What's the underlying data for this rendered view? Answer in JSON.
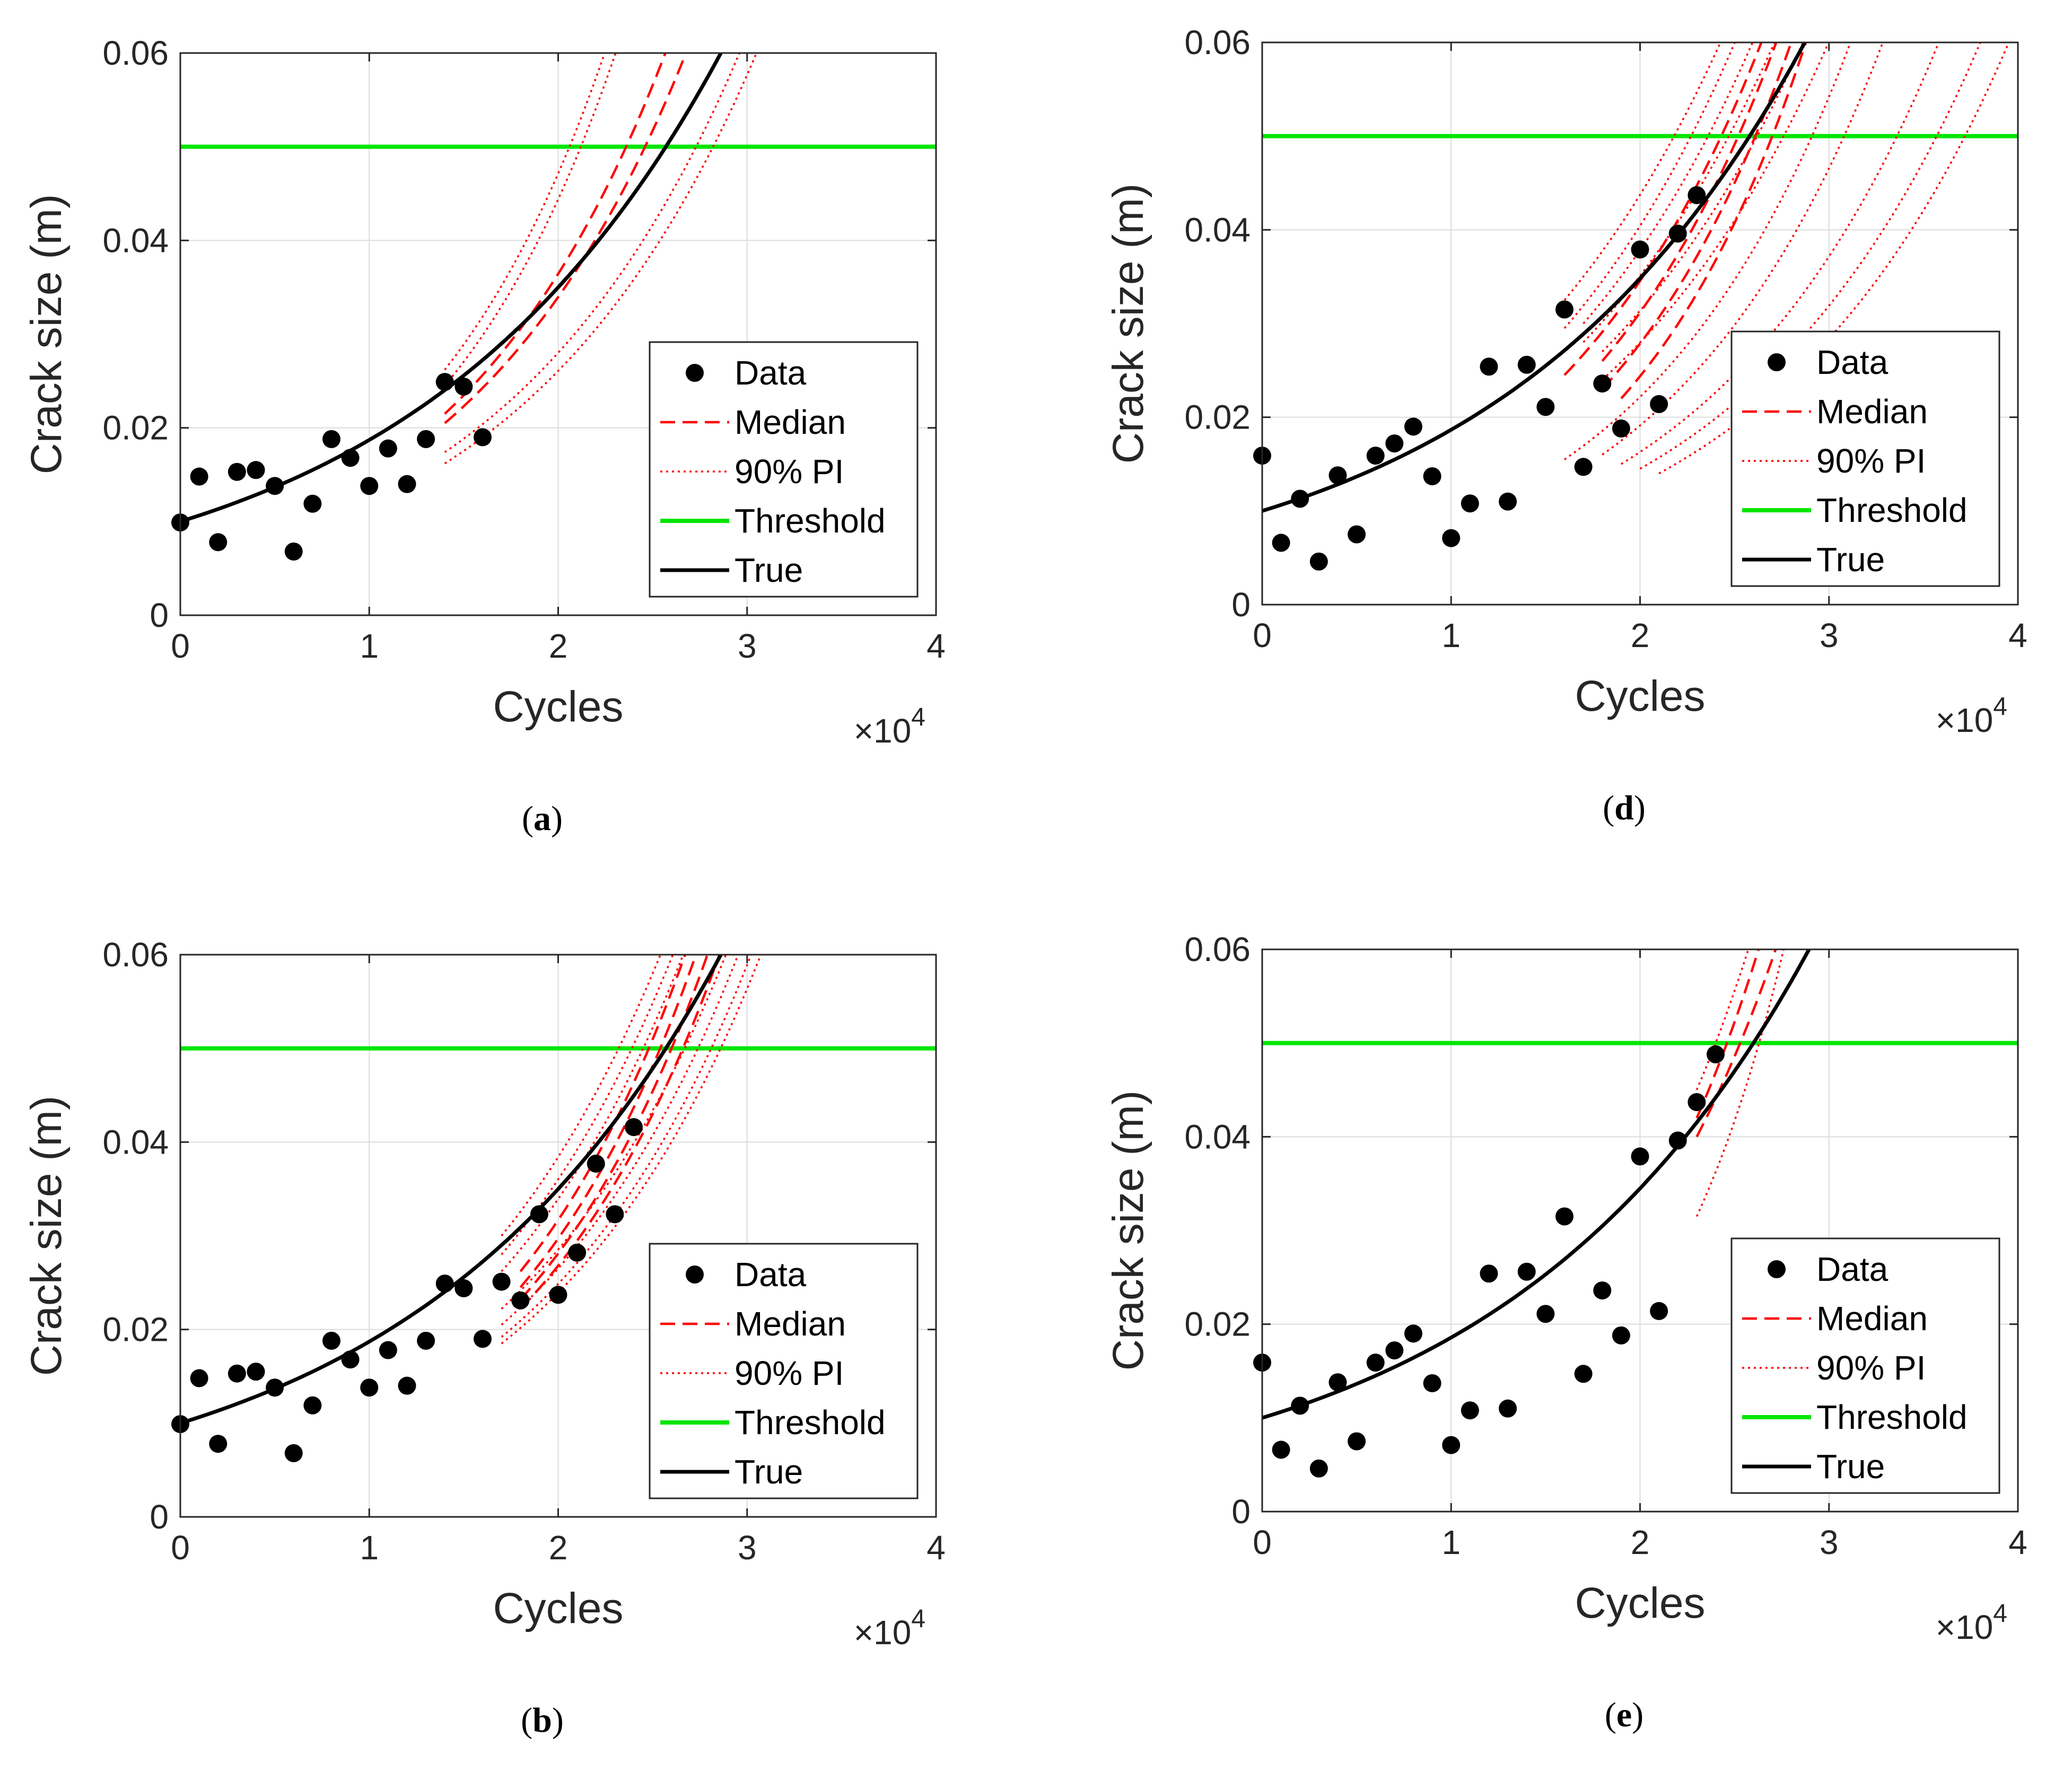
{
  "colors": {
    "data": "#000000",
    "median": "#ff0000",
    "pi": "#ff0000",
    "threshold": "#00e600",
    "true": "#000000",
    "grid": "#dcdcdc"
  },
  "chart_data": [
    {
      "id": "a",
      "type": "line",
      "caption": "a",
      "xlabel": "Cycles",
      "ylabel": "Crack size (m)",
      "x_multiplier": "×10",
      "x_multiplier_exp": "4",
      "xlim": [
        0,
        40000
      ],
      "ylim": [
        0,
        0.06
      ],
      "xticks": [
        0,
        10000,
        20000,
        30000,
        40000
      ],
      "xtick_labels": [
        "0",
        "1",
        "2",
        "3",
        "4"
      ],
      "yticks": [
        0,
        0.02,
        0.04,
        0.06
      ],
      "ytick_labels": [
        "0",
        "0.02",
        "0.04",
        "0.06"
      ],
      "legend": {
        "position": "middle-right",
        "entries": [
          "Data",
          "Median",
          "90% PI",
          "Threshold",
          "True"
        ]
      },
      "threshold": 0.05,
      "true_curve": {
        "a0": 0.01,
        "N_at_threshold": 25700
      },
      "data": {
        "x": [
          0,
          1000,
          2000,
          3000,
          4000,
          5000,
          6000,
          7000,
          8000,
          9000,
          10000,
          11000,
          12000,
          13000,
          14000,
          15000,
          16000
        ],
        "y": [
          0.0099,
          0.0148,
          0.0078,
          0.0153,
          0.0155,
          0.0138,
          0.0068,
          0.0119,
          0.0188,
          0.0168,
          0.0138,
          0.0178,
          0.014,
          0.0188,
          0.0249,
          0.0244,
          0.019
        ]
      },
      "median_curves": [
        {
          "start": [
            14000,
            0.0215
          ],
          "N_at_threshold": 23600
        },
        {
          "start": [
            14000,
            0.0205
          ],
          "N_at_threshold": 24600
        }
      ],
      "pi_curves": [
        {
          "start": [
            14000,
            0.0262
          ],
          "N_at_threshold": 20600
        },
        {
          "start": [
            14000,
            0.0245
          ],
          "N_at_threshold": 21200
        },
        {
          "start": [
            14000,
            0.0174
          ],
          "N_at_threshold": 27300
        },
        {
          "start": [
            14000,
            0.0162
          ],
          "N_at_threshold": 28200
        }
      ]
    },
    {
      "id": "b",
      "type": "line",
      "caption": "b",
      "xlabel": "Cycles",
      "ylabel": "Crack size (m)",
      "x_multiplier": "×10",
      "x_multiplier_exp": "4",
      "xlim": [
        0,
        40000
      ],
      "ylim": [
        0,
        0.06
      ],
      "xticks": [
        0,
        10000,
        20000,
        30000,
        40000
      ],
      "xtick_labels": [
        "0",
        "1",
        "2",
        "3",
        "4"
      ],
      "yticks": [
        0,
        0.02,
        0.04,
        0.06
      ],
      "ytick_labels": [
        "0",
        "0.02",
        "0.04",
        "0.06"
      ],
      "legend": {
        "position": "middle-right",
        "entries": [
          "Data",
          "Median",
          "90% PI",
          "Threshold",
          "True"
        ]
      },
      "threshold": 0.05,
      "true_curve": {
        "a0": 0.01,
        "N_at_threshold": 25700
      },
      "data": {
        "x": [
          0,
          1000,
          2000,
          3000,
          4000,
          5000,
          6000,
          7000,
          8000,
          9000,
          10000,
          11000,
          12000,
          13000,
          14000,
          15000,
          16000,
          17000,
          18000,
          19000,
          20000,
          21000,
          22000,
          23000,
          24000
        ],
        "y": [
          0.0099,
          0.0148,
          0.0078,
          0.0153,
          0.0155,
          0.0138,
          0.0068,
          0.0119,
          0.0188,
          0.0168,
          0.0138,
          0.0178,
          0.014,
          0.0188,
          0.0249,
          0.0244,
          0.019,
          0.0251,
          0.0231,
          0.0323,
          0.0237,
          0.0282,
          0.0377,
          0.0323,
          0.0416
        ]
      },
      "median_curves": [
        {
          "start": [
            18000,
            0.0262
          ],
          "N_at_threshold": 24800
        },
        {
          "start": [
            18000,
            0.0245
          ],
          "N_at_threshold": 25400
        },
        {
          "start": [
            18000,
            0.0232
          ],
          "N_at_threshold": 26000
        },
        {
          "start": [
            18000,
            0.0222
          ],
          "N_at_threshold": 26600
        }
      ],
      "pi_curves": [
        {
          "start": [
            17000,
            0.03
          ],
          "N_at_threshold": 23200
        },
        {
          "start": [
            17000,
            0.028
          ],
          "N_at_threshold": 23900
        },
        {
          "start": [
            17000,
            0.0262
          ],
          "N_at_threshold": 24500
        },
        {
          "start": [
            17000,
            0.0222
          ],
          "N_at_threshold": 26700
        },
        {
          "start": [
            17000,
            0.0205
          ],
          "N_at_threshold": 27400
        },
        {
          "start": [
            17000,
            0.0192
          ],
          "N_at_threshold": 28100
        },
        {
          "start": [
            17000,
            0.0185
          ],
          "N_at_threshold": 28600
        }
      ]
    },
    {
      "id": "d",
      "type": "line",
      "caption": "d",
      "xlabel": "Cycles",
      "ylabel": "Crack size (m)",
      "x_multiplier": "×10",
      "x_multiplier_exp": "4",
      "xlim": [
        0,
        40000
      ],
      "ylim": [
        0,
        0.06
      ],
      "xticks": [
        0,
        10000,
        20000,
        30000,
        40000
      ],
      "xtick_labels": [
        "0",
        "1",
        "2",
        "3",
        "4"
      ],
      "yticks": [
        0,
        0.02,
        0.04,
        0.06
      ],
      "ytick_labels": [
        "0",
        "0.02",
        "0.04",
        "0.06"
      ],
      "legend": {
        "position": "middle-right",
        "entries": [
          "Data",
          "Median",
          "90% PI",
          "Threshold",
          "True"
        ]
      },
      "threshold": 0.05,
      "true_curve": {
        "a0": 0.01,
        "N_at_threshold": 25800
      },
      "data": {
        "x": [
          0,
          1000,
          2000,
          3000,
          4000,
          5000,
          6000,
          7000,
          8000,
          9000,
          10000,
          11000,
          12000,
          13000,
          14000,
          15000,
          16000,
          17000,
          18000,
          19000,
          20000,
          21000,
          22000,
          23000
        ],
        "y": [
          0.0159,
          0.0066,
          0.0113,
          0.0046,
          0.0138,
          0.0075,
          0.0159,
          0.0172,
          0.019,
          0.0137,
          0.0071,
          0.0108,
          0.0254,
          0.011,
          0.0256,
          0.0211,
          0.0315,
          0.0147,
          0.0236,
          0.0188,
          0.0379,
          0.0214,
          0.0396,
          0.0437
        ]
      },
      "median_curves": [
        {
          "start": [
            16000,
            0.0245
          ],
          "N_at_threshold": 24300
        },
        {
          "start": [
            18000,
            0.026
          ],
          "N_at_threshold": 25200
        },
        {
          "start": [
            18000,
            0.023
          ],
          "N_at_threshold": 26100
        },
        {
          "start": [
            19000,
            0.022
          ],
          "N_at_threshold": 27000
        }
      ],
      "pi_curves": [
        {
          "start": [
            16000,
            0.0325
          ],
          "N_at_threshold": 21800
        },
        {
          "start": [
            16000,
            0.0295
          ],
          "N_at_threshold": 22700
        },
        {
          "start": [
            17000,
            0.03
          ],
          "N_at_threshold": 23600
        },
        {
          "start": [
            17000,
            0.028
          ],
          "N_at_threshold": 24700
        },
        {
          "start": [
            18000,
            0.027
          ],
          "N_at_threshold": 26200
        },
        {
          "start": [
            18000,
            0.024
          ],
          "N_at_threshold": 27600
        },
        {
          "start": [
            16000,
            0.0155
          ],
          "N_at_threshold": 29100
        },
        {
          "start": [
            18000,
            0.016
          ],
          "N_at_threshold": 30800
        },
        {
          "start": [
            19000,
            0.015
          ],
          "N_at_threshold": 33600
        },
        {
          "start": [
            20000,
            0.0145
          ],
          "N_at_threshold": 35700
        },
        {
          "start": [
            21000,
            0.014
          ],
          "N_at_threshold": 37200
        }
      ]
    },
    {
      "id": "e",
      "type": "line",
      "caption": "e",
      "xlabel": "Cycles",
      "ylabel": "Crack size (m)",
      "x_multiplier": "×10",
      "x_multiplier_exp": "4",
      "xlim": [
        0,
        40000
      ],
      "ylim": [
        0,
        0.06
      ],
      "xticks": [
        0,
        10000,
        20000,
        30000,
        40000
      ],
      "xtick_labels": [
        "0",
        "1",
        "2",
        "3",
        "4"
      ],
      "yticks": [
        0,
        0.02,
        0.04,
        0.06
      ],
      "ytick_labels": [
        "0",
        "0.02",
        "0.04",
        "0.06"
      ],
      "legend": {
        "position": "middle-right",
        "entries": [
          "Data",
          "Median",
          "90% PI",
          "Threshold",
          "True"
        ]
      },
      "threshold": 0.05,
      "true_curve": {
        "a0": 0.01,
        "N_at_threshold": 26000
      },
      "data": {
        "x": [
          0,
          1000,
          2000,
          3000,
          4000,
          5000,
          6000,
          7000,
          8000,
          9000,
          10000,
          11000,
          12000,
          13000,
          14000,
          15000,
          16000,
          17000,
          18000,
          19000,
          20000,
          21000,
          22000,
          23000,
          24000
        ],
        "y": [
          0.0159,
          0.0066,
          0.0113,
          0.0046,
          0.0138,
          0.0075,
          0.0159,
          0.0172,
          0.019,
          0.0137,
          0.0071,
          0.0108,
          0.0254,
          0.011,
          0.0256,
          0.0211,
          0.0315,
          0.0147,
          0.0236,
          0.0188,
          0.0379,
          0.0214,
          0.0396,
          0.0437,
          0.0488
        ]
      },
      "median_curves": [
        {
          "start": [
            23000,
            0.042
          ],
          "N_at_threshold": 24600
        },
        {
          "start": [
            23000,
            0.04
          ],
          "N_at_threshold": 25300
        }
      ],
      "pi_curves": [
        {
          "start": [
            23000,
            0.045
          ],
          "N_at_threshold": 24000
        },
        {
          "start": [
            23000,
            0.0315
          ],
          "N_at_threshold": 26300
        }
      ]
    }
  ]
}
